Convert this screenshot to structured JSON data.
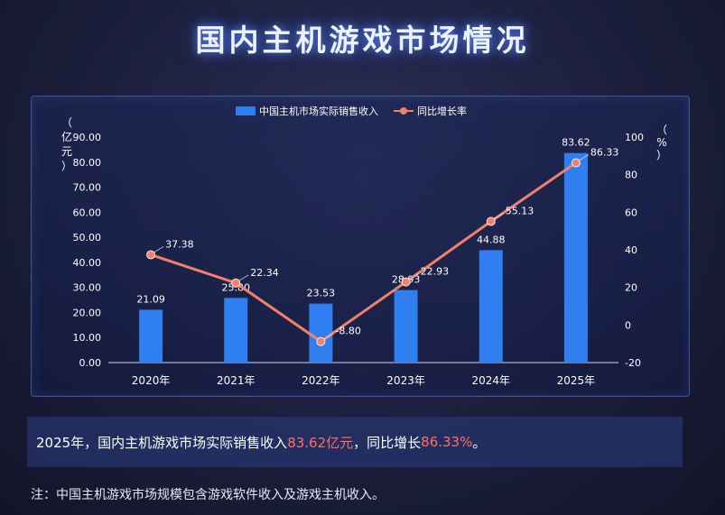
{
  "title": "国内主机游戏市场情况",
  "chart_data": {
    "type": "bar+line",
    "categories": [
      "2020年",
      "2021年",
      "2022年",
      "2023年",
      "2024年",
      "2025年"
    ],
    "series": [
      {
        "name": "中国主机市场实际销售收入",
        "type": "bar",
        "axis": "left",
        "values": [
          21.09,
          25.8,
          23.53,
          28.93,
          44.88,
          83.62
        ],
        "color": "#2f7ff0"
      },
      {
        "name": "同比增长率",
        "type": "line",
        "axis": "right",
        "values": [
          37.38,
          22.34,
          -8.8,
          22.93,
          55.13,
          86.33
        ],
        "color": "#f2806a"
      }
    ],
    "bar_labels": [
      "21.09",
      "25.80",
      "23.53",
      "28.93",
      "44.88",
      "83.62"
    ],
    "line_labels": [
      "37.38",
      "22.34",
      "-8.80",
      "22.93",
      "55.13",
      "86.33"
    ],
    "ylabel_left": "（亿元）",
    "ylabel_right": "（%）",
    "ylim_left": [
      0,
      90
    ],
    "yticks_left": [
      "0.00",
      "10.00",
      "20.00",
      "30.00",
      "40.00",
      "50.00",
      "60.00",
      "70.00",
      "80.00",
      "90.00"
    ],
    "ylim_right": [
      -20,
      100
    ],
    "yticks_right": [
      "-20",
      "0",
      "20",
      "40",
      "60",
      "80",
      "100"
    ],
    "legend_position": "top-center",
    "grid": false
  },
  "summary": {
    "prefix": "2025年，国内主机游戏市场实际销售收入",
    "revenue": "83.62亿元",
    "middle": "，同比增长",
    "growth": "86.33%",
    "suffix": "。"
  },
  "note": "注：中国主机游戏市场规模包含游戏软件收入及游戏主机收入。"
}
